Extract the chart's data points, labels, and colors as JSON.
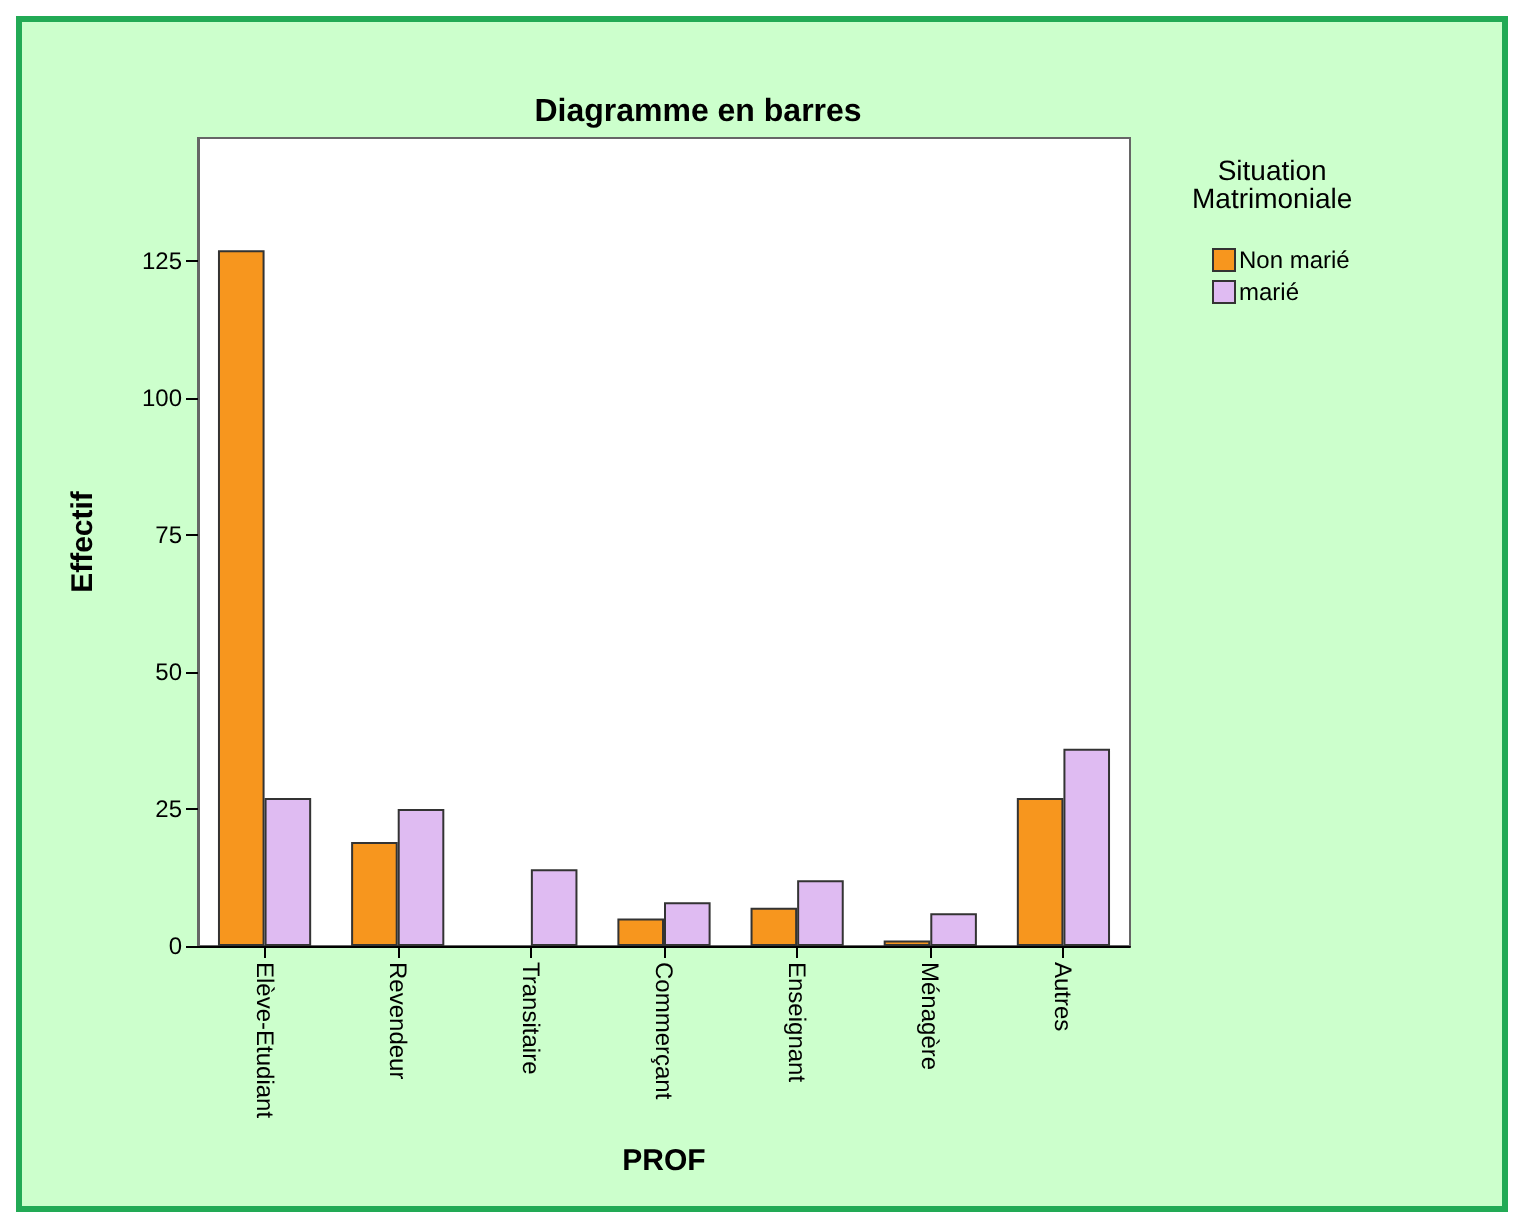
{
  "chart_data": {
    "type": "bar",
    "title": "Diagramme en barres",
    "xlabel": "PROF",
    "ylabel": "Effectif",
    "legend_title": "Situation\nMatrimoniale",
    "legend": "right",
    "categories": [
      "Elève-Etudiant",
      "Revendeur",
      "Transitaire",
      "Commerçant",
      "Enseignant",
      "Ménagère",
      "Autres"
    ],
    "series": [
      {
        "name": "Non marié",
        "color": "#f7961e",
        "values": [
          127,
          19,
          null,
          5,
          7,
          1,
          27
        ]
      },
      {
        "name": "marié",
        "color": "#dfbbf2",
        "values": [
          27,
          25,
          14,
          8,
          12,
          6,
          36
        ]
      }
    ],
    "ylim": [
      0,
      147.5
    ],
    "yticks": [
      0,
      25,
      50,
      75,
      100,
      125
    ],
    "grid": false
  }
}
